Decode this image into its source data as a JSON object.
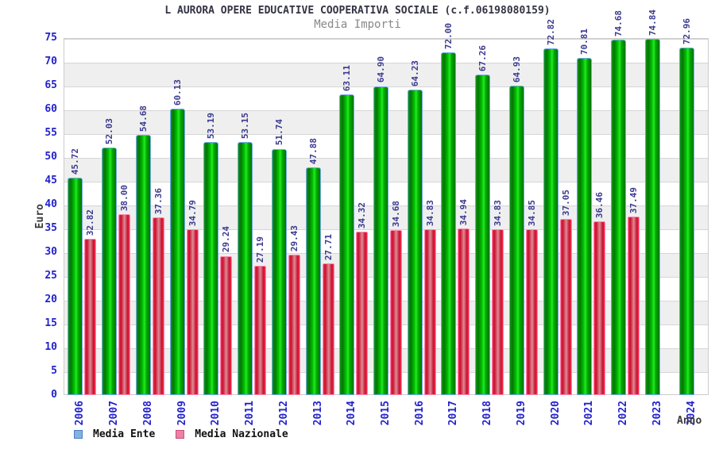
{
  "page": {
    "background": "#ffffff"
  },
  "chart_data": {
    "type": "bar",
    "title": "L AURORA OPERE EDUCATIVE COOPERATIVA SOCIALE (c.f.06198080159)",
    "subtitle": "Media Importi",
    "xlabel": "Anno",
    "ylabel": "Euro",
    "ylim": [
      0,
      75
    ],
    "ytick_step": 5,
    "grid": "horizontal-bands",
    "legend_position": "bottom-left",
    "value_label_decimals": 2,
    "categories": [
      "2006",
      "2007",
      "2008",
      "2009",
      "2010",
      "2011",
      "2012",
      "2013",
      "2014",
      "2015",
      "2016",
      "2017",
      "2018",
      "2019",
      "2020",
      "2021",
      "2022",
      "2023",
      "2024"
    ],
    "series": [
      {
        "name": "Media Ente",
        "legend_fill": "#7fb3e1",
        "legend_border": "#4d7ebf",
        "bar_style": "green-gradient",
        "values": [
          45.72,
          52.03,
          54.68,
          60.13,
          53.19,
          53.15,
          51.74,
          47.88,
          63.11,
          64.9,
          64.23,
          72.0,
          67.26,
          64.93,
          72.82,
          70.81,
          74.68,
          74.84,
          72.96
        ]
      },
      {
        "name": "Media Nazionale",
        "legend_fill": "#ef7fa4",
        "legend_border": "#c94f7c",
        "bar_style": "red-gradient",
        "values": [
          32.82,
          38.0,
          37.36,
          34.79,
          29.24,
          27.19,
          29.43,
          27.71,
          34.32,
          34.68,
          34.83,
          34.94,
          34.83,
          34.85,
          37.05,
          36.46,
          37.49,
          null,
          null
        ]
      }
    ],
    "colors": {
      "tick_text": "#2323cc",
      "value_text": "#3a3a90",
      "title_text": "#333344",
      "subtitle_text": "#888888",
      "axis_label_text": "#3a3a3a",
      "band_light": "#ffffff",
      "band_dark": "#efefef",
      "gridline": "#d6d6d6",
      "plot_border": "#cccccc",
      "bar_green_main": "#00c300",
      "bar_green_border": "#6fa8e8",
      "bar_red_main": "#c41230",
      "bar_red_border": "#ff85ad"
    }
  }
}
